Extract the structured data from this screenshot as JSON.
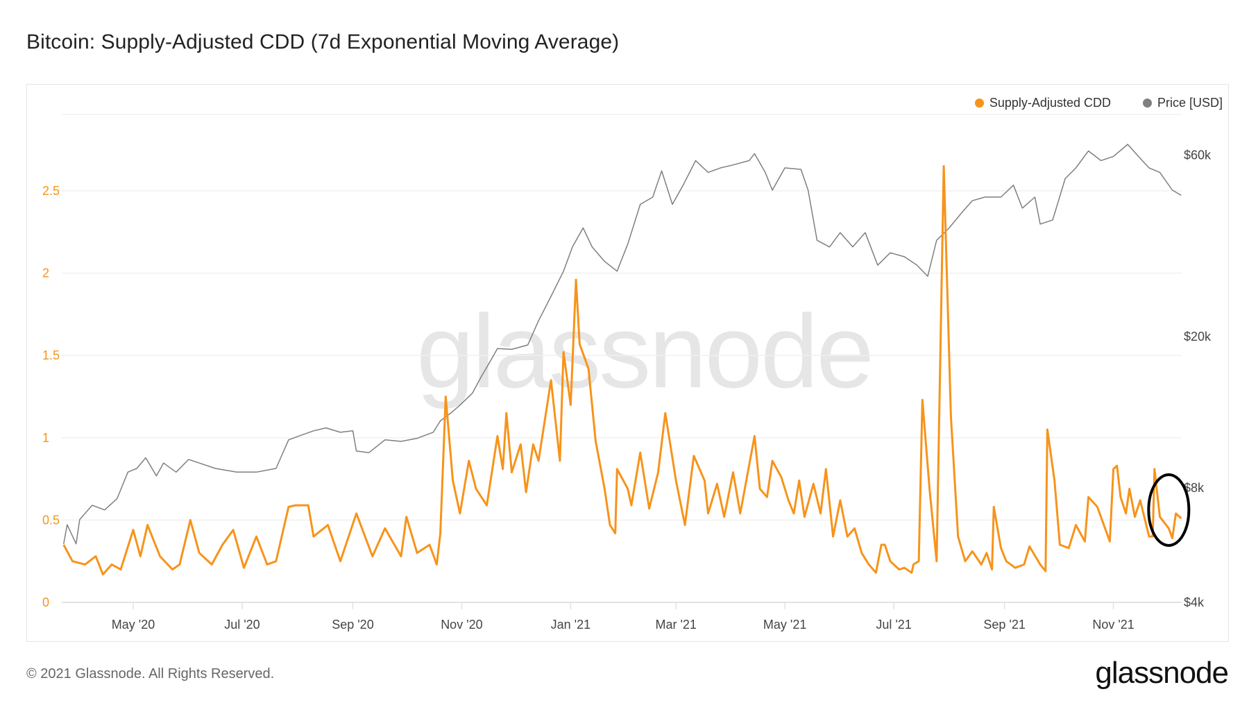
{
  "header": {
    "title": "Bitcoin: Supply-Adjusted CDD (7d Exponential Moving Average)"
  },
  "footer": {
    "copyright": "© 2021 Glassnode. All Rights Reserved.",
    "logo": "glassnode"
  },
  "watermark": "glassnode",
  "colors": {
    "cdd": "#f7931a",
    "price": "#7f7f7f",
    "grid": "#eeeeee",
    "annotation": "#000000"
  },
  "chart_data": {
    "type": "line",
    "title": "Bitcoin: Supply-Adjusted CDD (7d Exponential Moving Average)",
    "legend": {
      "placement": "top-right",
      "items": [
        "Supply-Adjusted CDD",
        "Price [USD]"
      ]
    },
    "grid": true,
    "x_axis": {
      "type": "date",
      "range": [
        "2020-03-22",
        "2021-12-09"
      ],
      "ticks": [
        [
          "2020-05-01",
          "May '20"
        ],
        [
          "2020-07-01",
          "Jul '20"
        ],
        [
          "2020-09-01",
          "Sep '20"
        ],
        [
          "2020-11-01",
          "Nov '20"
        ],
        [
          "2021-01-01",
          "Jan '21"
        ],
        [
          "2021-03-01",
          "Mar '21"
        ],
        [
          "2021-05-01",
          "May '21"
        ],
        [
          "2021-07-01",
          "Jul '21"
        ],
        [
          "2021-09-01",
          "Sep '21"
        ],
        [
          "2021-11-01",
          "Nov '21"
        ]
      ]
    },
    "y_left": {
      "scale": "linear",
      "range": [
        0,
        3
      ],
      "ticks": [
        [
          0,
          "0"
        ],
        [
          0.5,
          "0.5"
        ],
        [
          1,
          "1"
        ],
        [
          1.5,
          "1.5"
        ],
        [
          2,
          "2"
        ],
        [
          2.5,
          "2.5"
        ]
      ]
    },
    "y_right": {
      "scale": "log",
      "unit": "USD",
      "range": [
        4000,
        80000
      ],
      "ticks": [
        [
          4000,
          "$4k"
        ],
        [
          8000,
          "$8k"
        ],
        [
          20000,
          "$20k"
        ],
        [
          60000,
          "$60k"
        ]
      ]
    },
    "annotation": {
      "type": "ellipse",
      "around": [
        "2021-11-25",
        "2021-12-09"
      ],
      "color": "#000000"
    },
    "series": [
      {
        "name": "Supply-Adjusted CDD",
        "axis": "left",
        "color": "#f7931a",
        "points": [
          [
            "2020-03-23",
            0.35
          ],
          [
            "2020-03-28",
            0.25
          ],
          [
            "2020-04-04",
            0.23
          ],
          [
            "2020-04-10",
            0.28
          ],
          [
            "2020-04-14",
            0.17
          ],
          [
            "2020-04-19",
            0.23
          ],
          [
            "2020-04-24",
            0.2
          ],
          [
            "2020-05-01",
            0.44
          ],
          [
            "2020-05-05",
            0.28
          ],
          [
            "2020-05-09",
            0.47
          ],
          [
            "2020-05-16",
            0.28
          ],
          [
            "2020-05-23",
            0.2
          ],
          [
            "2020-05-27",
            0.23
          ],
          [
            "2020-06-02",
            0.5
          ],
          [
            "2020-06-07",
            0.3
          ],
          [
            "2020-06-14",
            0.23
          ],
          [
            "2020-06-20",
            0.35
          ],
          [
            "2020-06-26",
            0.44
          ],
          [
            "2020-07-02",
            0.21
          ],
          [
            "2020-07-09",
            0.4
          ],
          [
            "2020-07-15",
            0.23
          ],
          [
            "2020-07-20",
            0.25
          ],
          [
            "2020-07-27",
            0.58
          ],
          [
            "2020-07-31",
            0.59
          ],
          [
            "2020-08-07",
            0.59
          ],
          [
            "2020-08-10",
            0.4
          ],
          [
            "2020-08-18",
            0.47
          ],
          [
            "2020-08-25",
            0.25
          ],
          [
            "2020-09-03",
            0.54
          ],
          [
            "2020-09-12",
            0.28
          ],
          [
            "2020-09-19",
            0.45
          ],
          [
            "2020-09-28",
            0.28
          ],
          [
            "2020-10-01",
            0.52
          ],
          [
            "2020-10-07",
            0.3
          ],
          [
            "2020-10-14",
            0.35
          ],
          [
            "2020-10-18",
            0.23
          ],
          [
            "2020-10-20",
            0.42
          ],
          [
            "2020-10-23",
            1.25
          ],
          [
            "2020-10-27",
            0.74
          ],
          [
            "2020-10-31",
            0.54
          ],
          [
            "2020-11-05",
            0.86
          ],
          [
            "2020-11-09",
            0.69
          ],
          [
            "2020-11-15",
            0.59
          ],
          [
            "2020-11-21",
            1.01
          ],
          [
            "2020-11-24",
            0.81
          ],
          [
            "2020-11-26",
            1.15
          ],
          [
            "2020-11-29",
            0.79
          ],
          [
            "2020-12-04",
            0.96
          ],
          [
            "2020-12-07",
            0.67
          ],
          [
            "2020-12-11",
            0.96
          ],
          [
            "2020-12-14",
            0.86
          ],
          [
            "2020-12-21",
            1.35
          ],
          [
            "2020-12-26",
            0.86
          ],
          [
            "2020-12-28",
            1.52
          ],
          [
            "2021-01-01",
            1.2
          ],
          [
            "2021-01-04",
            1.96
          ],
          [
            "2021-01-06",
            1.57
          ],
          [
            "2021-01-11",
            1.42
          ],
          [
            "2021-01-15",
            0.98
          ],
          [
            "2021-01-20",
            0.69
          ],
          [
            "2021-01-23",
            0.47
          ],
          [
            "2021-01-26",
            0.42
          ],
          [
            "2021-01-27",
            0.81
          ],
          [
            "2021-02-02",
            0.69
          ],
          [
            "2021-02-04",
            0.59
          ],
          [
            "2021-02-09",
            0.91
          ],
          [
            "2021-02-14",
            0.57
          ],
          [
            "2021-02-19",
            0.79
          ],
          [
            "2021-02-23",
            1.15
          ],
          [
            "2021-03-01",
            0.74
          ],
          [
            "2021-03-06",
            0.47
          ],
          [
            "2021-03-11",
            0.89
          ],
          [
            "2021-03-17",
            0.74
          ],
          [
            "2021-03-19",
            0.54
          ],
          [
            "2021-03-24",
            0.72
          ],
          [
            "2021-03-28",
            0.52
          ],
          [
            "2021-04-02",
            0.79
          ],
          [
            "2021-04-06",
            0.54
          ],
          [
            "2021-04-14",
            1.01
          ],
          [
            "2021-04-17",
            0.69
          ],
          [
            "2021-04-21",
            0.64
          ],
          [
            "2021-04-24",
            0.86
          ],
          [
            "2021-04-29",
            0.76
          ],
          [
            "2021-05-03",
            0.62
          ],
          [
            "2021-05-06",
            0.54
          ],
          [
            "2021-05-09",
            0.74
          ],
          [
            "2021-05-12",
            0.52
          ],
          [
            "2021-05-17",
            0.72
          ],
          [
            "2021-05-21",
            0.54
          ],
          [
            "2021-05-24",
            0.81
          ],
          [
            "2021-05-28",
            0.4
          ],
          [
            "2021-06-01",
            0.62
          ],
          [
            "2021-06-05",
            0.4
          ],
          [
            "2021-06-09",
            0.45
          ],
          [
            "2021-06-13",
            0.3
          ],
          [
            "2021-06-17",
            0.23
          ],
          [
            "2021-06-21",
            0.18
          ],
          [
            "2021-06-24",
            0.35
          ],
          [
            "2021-06-26",
            0.35
          ],
          [
            "2021-06-29",
            0.25
          ],
          [
            "2021-07-04",
            0.2
          ],
          [
            "2021-07-07",
            0.21
          ],
          [
            "2021-07-11",
            0.18
          ],
          [
            "2021-07-12",
            0.23
          ],
          [
            "2021-07-15",
            0.25
          ],
          [
            "2021-07-17",
            1.23
          ],
          [
            "2021-07-21",
            0.69
          ],
          [
            "2021-07-25",
            0.25
          ],
          [
            "2021-07-29",
            2.65
          ],
          [
            "2021-08-02",
            1.13
          ],
          [
            "2021-08-06",
            0.4
          ],
          [
            "2021-08-10",
            0.25
          ],
          [
            "2021-08-14",
            0.31
          ],
          [
            "2021-08-19",
            0.23
          ],
          [
            "2021-08-22",
            0.3
          ],
          [
            "2021-08-25",
            0.2
          ],
          [
            "2021-08-26",
            0.58
          ],
          [
            "2021-08-30",
            0.33
          ],
          [
            "2021-09-02",
            0.25
          ],
          [
            "2021-09-07",
            0.21
          ],
          [
            "2021-09-12",
            0.23
          ],
          [
            "2021-09-15",
            0.34
          ],
          [
            "2021-09-21",
            0.23
          ],
          [
            "2021-09-24",
            0.19
          ],
          [
            "2021-09-25",
            1.05
          ],
          [
            "2021-09-29",
            0.74
          ],
          [
            "2021-10-02",
            0.35
          ],
          [
            "2021-10-07",
            0.33
          ],
          [
            "2021-10-11",
            0.47
          ],
          [
            "2021-10-16",
            0.37
          ],
          [
            "2021-10-18",
            0.64
          ],
          [
            "2021-10-23",
            0.58
          ],
          [
            "2021-10-30",
            0.37
          ],
          [
            "2021-11-01",
            0.81
          ],
          [
            "2021-11-03",
            0.83
          ],
          [
            "2021-11-05",
            0.64
          ],
          [
            "2021-11-08",
            0.54
          ],
          [
            "2021-11-10",
            0.69
          ],
          [
            "2021-11-13",
            0.52
          ],
          [
            "2021-11-16",
            0.62
          ],
          [
            "2021-11-21",
            0.4
          ],
          [
            "2021-11-23",
            0.4
          ],
          [
            "2021-11-24",
            0.81
          ],
          [
            "2021-11-27",
            0.52
          ],
          [
            "2021-12-02",
            0.45
          ],
          [
            "2021-12-04",
            0.39
          ],
          [
            "2021-12-06",
            0.54
          ],
          [
            "2021-12-09",
            0.51
          ]
        ]
      },
      {
        "name": "Price [USD]",
        "axis": "right",
        "color": "#7f7f7f",
        "points": [
          [
            "2020-03-23",
            5700
          ],
          [
            "2020-03-25",
            6400
          ],
          [
            "2020-03-30",
            5700
          ],
          [
            "2020-04-01",
            6600
          ],
          [
            "2020-04-08",
            7200
          ],
          [
            "2020-04-15",
            7000
          ],
          [
            "2020-04-22",
            7500
          ],
          [
            "2020-04-28",
            8800
          ],
          [
            "2020-05-03",
            9000
          ],
          [
            "2020-05-08",
            9600
          ],
          [
            "2020-05-14",
            8600
          ],
          [
            "2020-05-18",
            9300
          ],
          [
            "2020-05-25",
            8800
          ],
          [
            "2020-06-01",
            9500
          ],
          [
            "2020-06-07",
            9300
          ],
          [
            "2020-06-16",
            9000
          ],
          [
            "2020-06-28",
            8800
          ],
          [
            "2020-07-09",
            8800
          ],
          [
            "2020-07-20",
            9000
          ],
          [
            "2020-07-27",
            10700
          ],
          [
            "2020-08-03",
            11000
          ],
          [
            "2020-08-10",
            11300
          ],
          [
            "2020-08-17",
            11500
          ],
          [
            "2020-08-25",
            11200
          ],
          [
            "2020-09-01",
            11300
          ],
          [
            "2020-09-03",
            10000
          ],
          [
            "2020-09-10",
            9900
          ],
          [
            "2020-09-19",
            10700
          ],
          [
            "2020-09-28",
            10600
          ],
          [
            "2020-10-07",
            10800
          ],
          [
            "2020-10-16",
            11200
          ],
          [
            "2020-10-20",
            12000
          ],
          [
            "2020-10-26",
            12600
          ],
          [
            "2020-10-31",
            13200
          ],
          [
            "2020-11-07",
            14200
          ],
          [
            "2020-11-12",
            15700
          ],
          [
            "2020-11-16",
            16900
          ],
          [
            "2020-11-21",
            18600
          ],
          [
            "2020-11-29",
            18500
          ],
          [
            "2020-12-08",
            19000
          ],
          [
            "2020-12-14",
            22000
          ],
          [
            "2020-12-21",
            25500
          ],
          [
            "2020-12-28",
            29700
          ],
          [
            "2021-01-02",
            34400
          ],
          [
            "2021-01-08",
            38600
          ],
          [
            "2021-01-13",
            34400
          ],
          [
            "2021-01-20",
            31500
          ],
          [
            "2021-01-27",
            29700
          ],
          [
            "2021-02-02",
            35000
          ],
          [
            "2021-02-09",
            44500
          ],
          [
            "2021-02-16",
            46500
          ],
          [
            "2021-02-21",
            54500
          ],
          [
            "2021-02-27",
            44500
          ],
          [
            "2021-03-05",
            50000
          ],
          [
            "2021-03-12",
            58000
          ],
          [
            "2021-03-19",
            54000
          ],
          [
            "2021-03-26",
            55500
          ],
          [
            "2021-04-02",
            56500
          ],
          [
            "2021-04-11",
            58000
          ],
          [
            "2021-04-14",
            60500
          ],
          [
            "2021-04-20",
            54000
          ],
          [
            "2021-04-24",
            48500
          ],
          [
            "2021-05-01",
            55500
          ],
          [
            "2021-05-10",
            55000
          ],
          [
            "2021-05-14",
            48500
          ],
          [
            "2021-05-19",
            35800
          ],
          [
            "2021-05-26",
            34400
          ],
          [
            "2021-06-01",
            37500
          ],
          [
            "2021-06-08",
            34400
          ],
          [
            "2021-06-15",
            37500
          ],
          [
            "2021-06-22",
            30800
          ],
          [
            "2021-06-29",
            33200
          ],
          [
            "2021-07-07",
            32400
          ],
          [
            "2021-07-14",
            30800
          ],
          [
            "2021-07-20",
            28800
          ],
          [
            "2021-07-25",
            35800
          ],
          [
            "2021-08-01",
            38600
          ],
          [
            "2021-08-08",
            42300
          ],
          [
            "2021-08-14",
            45500
          ],
          [
            "2021-08-21",
            46500
          ],
          [
            "2021-08-30",
            46500
          ],
          [
            "2021-09-06",
            50000
          ],
          [
            "2021-09-11",
            43500
          ],
          [
            "2021-09-18",
            46500
          ],
          [
            "2021-09-21",
            39500
          ],
          [
            "2021-09-28",
            40500
          ],
          [
            "2021-10-05",
            52000
          ],
          [
            "2021-10-11",
            55500
          ],
          [
            "2021-10-18",
            61500
          ],
          [
            "2021-10-25",
            58000
          ],
          [
            "2021-11-01",
            59500
          ],
          [
            "2021-11-09",
            64000
          ],
          [
            "2021-11-15",
            59500
          ],
          [
            "2021-11-21",
            55500
          ],
          [
            "2021-11-27",
            54000
          ],
          [
            "2021-12-04",
            48500
          ],
          [
            "2021-12-09",
            47000
          ]
        ]
      }
    ]
  }
}
